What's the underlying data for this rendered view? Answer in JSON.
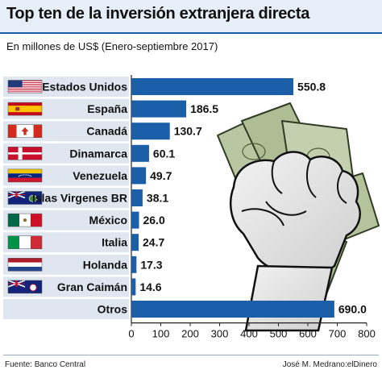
{
  "title": "Top ten de la inversión extranjera directa",
  "subtitle": "En millones de US$ (Enero-septiembre 2017)",
  "source": "Fuente: Banco Central",
  "credit": "José M. Medrano:elDinero",
  "colors": {
    "bar": "#1a5fa8",
    "band": "#dfe6ef",
    "title_band": "#e6eef7"
  },
  "illustration": "fist-clutching-dollar-bills",
  "chart_data": {
    "type": "bar",
    "orientation": "horizontal",
    "categories": [
      "Estados Unidos",
      "España",
      "Canadá",
      "Dinamarca",
      "Venezuela",
      "Islas Virgenes BR",
      "México",
      "Italia",
      "Holanda",
      "Gran Caimán",
      "Otros"
    ],
    "flags": [
      "us-flag-icon",
      "spain-flag-icon",
      "canada-flag-icon",
      "denmark-flag-icon",
      "venezuela-flag-icon",
      "bvi-flag-icon",
      "mexico-flag-icon",
      "italy-flag-icon",
      "netherlands-flag-icon",
      "cayman-flag-icon",
      ""
    ],
    "values": [
      550.8,
      186.5,
      130.7,
      60.1,
      49.7,
      38.1,
      26.0,
      24.7,
      17.3,
      14.6,
      690.0
    ],
    "value_labels": [
      "550.8",
      "186.5",
      "130.7",
      "60.1",
      "49.7",
      "38.1",
      "26.0",
      "24.7",
      "17.3",
      "14.6",
      "690.0"
    ],
    "xlim": [
      0,
      800
    ],
    "xticks": [
      "0",
      "100",
      "200",
      "300",
      "400",
      "500",
      "600",
      "700",
      "800"
    ],
    "grid": false,
    "legend": "none"
  }
}
